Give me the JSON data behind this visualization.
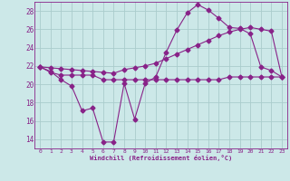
{
  "xlabel": "Windchill (Refroidissement éolien,°C)",
  "background_color": "#cce8e8",
  "grid_color": "#aacccc",
  "line_color": "#882288",
  "x_values": [
    0,
    1,
    2,
    3,
    4,
    5,
    6,
    7,
    8,
    9,
    10,
    11,
    12,
    13,
    14,
    15,
    16,
    17,
    18,
    19,
    20,
    21,
    22,
    23
  ],
  "y_series1": [
    21.9,
    21.4,
    20.5,
    19.8,
    17.1,
    17.4,
    13.7,
    13.7,
    20.1,
    16.2,
    20.1,
    20.8,
    23.5,
    25.9,
    27.8,
    28.7,
    28.1,
    27.2,
    26.2,
    26.1,
    25.5,
    21.9,
    21.5,
    20.8
  ],
  "y_series2": [
    21.9,
    21.3,
    21.0,
    21.0,
    21.0,
    21.0,
    20.5,
    20.5,
    20.5,
    20.5,
    20.5,
    20.5,
    20.5,
    20.5,
    20.5,
    20.5,
    20.5,
    20.5,
    20.8,
    20.8,
    20.8,
    20.8,
    20.8,
    20.8
  ],
  "y_series3": [
    21.9,
    21.8,
    21.7,
    21.6,
    21.5,
    21.4,
    21.3,
    21.2,
    21.6,
    21.8,
    22.0,
    22.3,
    22.8,
    23.3,
    23.8,
    24.3,
    24.8,
    25.3,
    25.7,
    26.0,
    26.2,
    26.0,
    25.8,
    20.8
  ],
  "ylim": [
    13,
    29
  ],
  "yticks": [
    14,
    16,
    18,
    20,
    22,
    24,
    26,
    28
  ],
  "xlim": [
    -0.5,
    23.5
  ],
  "xtick_labels": [
    "0",
    "1",
    "2",
    "3",
    "4",
    "5",
    "6",
    "7",
    "8",
    "9",
    "10",
    "11",
    "12",
    "13",
    "14",
    "15",
    "16",
    "17",
    "18",
    "19",
    "20",
    "21",
    "22",
    "23"
  ]
}
